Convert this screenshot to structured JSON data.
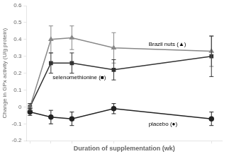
{
  "chart_data": {
    "type": "line",
    "x": [
      0,
      6,
      12,
      24,
      52
    ],
    "series": [
      {
        "color": "#888888",
        "marker": "triangle",
        "values": [
          0.0,
          0.4,
          0.41,
          0.35,
          0.33
        ],
        "yerr": [
          0.02,
          0.08,
          0.07,
          0.09,
          0.09
        ]
      },
      {
        "color": "#333333",
        "marker": "square",
        "values": [
          0.0,
          0.26,
          0.26,
          0.22,
          0.3
        ],
        "yerr": [
          0.02,
          0.06,
          0.06,
          0.06,
          0.12
        ]
      },
      {
        "color": "#222222",
        "marker": "circle",
        "values": [
          -0.03,
          -0.06,
          -0.07,
          -0.01,
          -0.07
        ],
        "yerr": [
          0.02,
          0.04,
          0.04,
          0.03,
          0.04
        ]
      }
    ],
    "xlabel": "Duration of supplementation (wk)",
    "ylabel": "Change in GPx activity (U/g protein)",
    "xlim": [
      -1,
      55
    ],
    "ylim": [
      -0.2,
      0.6
    ],
    "xticks": [
      0,
      6,
      12,
      24,
      52
    ],
    "yticks": [
      -0.2,
      -0.1,
      0,
      0.1,
      0.2,
      0.3,
      0.4,
      0.5,
      0.6
    ],
    "tick_labels": "y",
    "grid": false,
    "annotations": [
      {
        "text": "Brazil nuts (▲)",
        "x": 34,
        "y": 0.37
      },
      {
        "text": "selenomethionine (■)",
        "x": 6.5,
        "y": 0.175
      },
      {
        "text": "placebo (●)",
        "x": 34,
        "y": -0.1
      }
    ]
  }
}
